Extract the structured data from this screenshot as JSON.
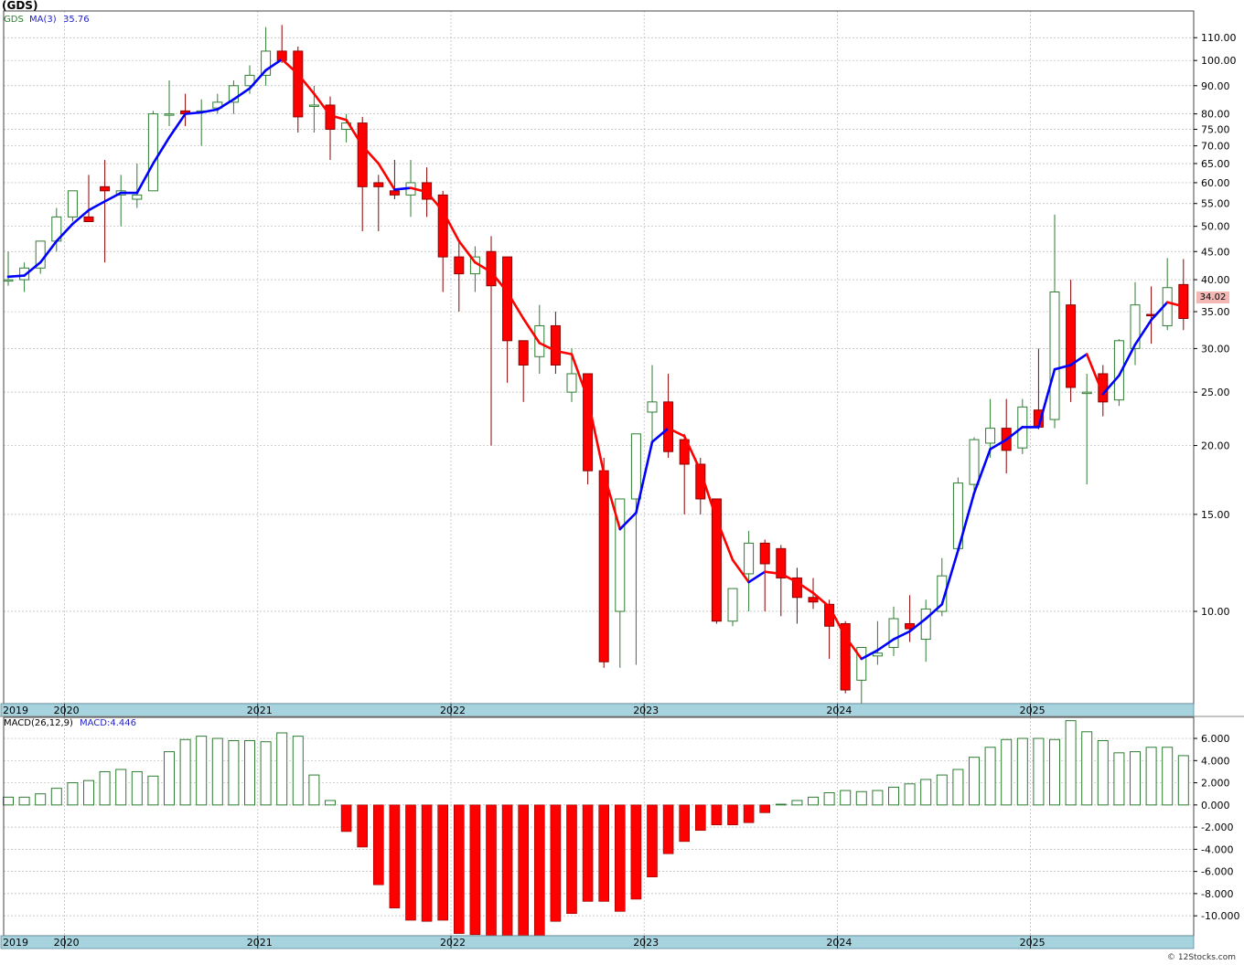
{
  "header": {
    "ticker_title": "(GDS)",
    "legend_symbol": "GDS",
    "legend_ma_label": "MA(3)",
    "legend_ma_value": "35.76",
    "last_price_label": "34.02"
  },
  "macd_header": {
    "label": "MACD(26,12,9)",
    "value_label": "MACD:4.446"
  },
  "footer": {
    "credit": "© 12Stocks.com"
  },
  "colors": {
    "up_candle": "#2e7d32",
    "down_candle": "#ff0000",
    "ma_up": "#0000ff",
    "ma_down": "#ff0000",
    "axis_band": "#a7d3df",
    "grid": "#b8b8b8",
    "last_price_box": "#f4b8b4"
  },
  "chart_data": [
    {
      "type": "candlestick",
      "title": "(GDS)",
      "scale": "log",
      "ylim": [
        6.8,
        123
      ],
      "price_ticks": [
        10,
        15,
        20,
        25,
        30,
        35,
        40,
        45,
        50,
        55,
        60,
        65,
        70,
        75,
        80,
        90,
        100,
        110
      ],
      "price_tick_labels": [
        "10.00",
        "15.00",
        "20.00",
        "25.00",
        "30.00",
        "35.00",
        "40.00",
        "45.00",
        "50.00",
        "55.00",
        "60.00",
        "65.00",
        "70.00",
        "75.00",
        "80.00",
        "90.00",
        "100.00",
        "110.00"
      ],
      "year_labels": [
        "2019",
        "2020",
        "2021",
        "2022",
        "2023",
        "2024",
        "2025"
      ],
      "year_label_months": [
        0,
        4,
        16,
        28,
        40,
        52,
        64
      ],
      "start_month": "Nov 2019",
      "ohlc": [
        [
          40,
          45,
          39,
          40
        ],
        [
          40,
          43,
          38,
          42
        ],
        [
          42,
          47,
          41,
          47
        ],
        [
          47,
          54,
          45,
          52
        ],
        [
          52,
          58,
          51,
          58
        ],
        [
          52,
          62,
          52,
          51
        ],
        [
          59,
          66,
          43,
          58
        ],
        [
          57,
          62,
          50,
          58
        ],
        [
          56,
          65,
          54,
          57
        ],
        [
          58,
          81,
          58,
          80
        ],
        [
          80,
          92,
          76,
          80
        ],
        [
          81,
          87,
          76,
          80
        ],
        [
          81,
          85,
          70,
          81
        ],
        [
          82,
          87,
          80,
          84
        ],
        [
          84,
          92,
          80,
          90
        ],
        [
          90,
          98,
          87,
          94
        ],
        [
          94,
          115,
          90,
          104
        ],
        [
          104,
          116,
          99,
          100
        ],
        [
          104,
          106,
          74,
          79
        ],
        [
          83,
          90,
          74,
          83
        ],
        [
          83,
          86,
          66,
          75
        ],
        [
          75,
          80,
          71,
          77
        ],
        [
          77,
          79,
          49,
          59
        ],
        [
          60,
          62,
          49,
          59
        ],
        [
          58,
          66,
          56,
          57
        ],
        [
          57,
          66,
          52,
          60
        ],
        [
          60,
          64,
          52,
          56
        ],
        [
          57,
          58,
          38,
          44
        ],
        [
          44,
          47,
          35,
          41
        ],
        [
          41,
          46,
          38,
          44
        ],
        [
          45,
          48,
          20,
          39
        ],
        [
          44,
          44,
          26,
          31
        ],
        [
          31,
          31,
          24,
          28
        ],
        [
          29,
          36,
          27,
          33
        ],
        [
          33,
          35,
          27,
          28
        ],
        [
          25,
          30,
          24,
          27
        ],
        [
          27,
          27,
          17,
          18
        ],
        [
          18,
          19,
          7.9,
          8.1
        ],
        [
          10,
          16,
          7.9,
          16
        ],
        [
          16,
          21,
          8,
          21
        ],
        [
          23,
          28,
          20,
          24
        ],
        [
          24,
          27,
          19,
          19.5
        ],
        [
          20.5,
          21,
          15,
          18.5
        ],
        [
          18.5,
          19,
          15,
          16
        ],
        [
          16,
          16,
          9.5,
          9.6
        ],
        [
          9.6,
          11,
          9.4,
          11
        ],
        [
          11.7,
          14,
          10,
          13.3
        ],
        [
          13.3,
          13.5,
          10,
          12.2
        ],
        [
          13,
          13.2,
          9.8,
          11.5
        ],
        [
          11.5,
          12,
          9.5,
          10.6
        ],
        [
          10.6,
          11.5,
          10.1,
          10.4
        ],
        [
          10.3,
          10.5,
          8.2,
          9.4
        ],
        [
          9.5,
          9.6,
          7.1,
          7.2
        ],
        [
          7.5,
          8.6,
          6.7,
          8.6
        ],
        [
          8.3,
          9.6,
          8,
          8.4
        ],
        [
          8.6,
          10.2,
          8.3,
          9.7
        ],
        [
          9.5,
          10.7,
          8.8,
          9.3
        ],
        [
          8.9,
          10.5,
          8.1,
          10.1
        ],
        [
          10,
          12.5,
          9.8,
          11.6
        ],
        [
          13,
          17.5,
          13,
          17.1
        ],
        [
          17,
          20.7,
          16.4,
          20.5
        ],
        [
          20.2,
          24.3,
          19,
          21.5
        ],
        [
          21.5,
          24.3,
          17.8,
          19.6
        ],
        [
          19.8,
          24.3,
          19.3,
          23.5
        ],
        [
          23.2,
          30,
          21.4,
          21.6
        ],
        [
          22.3,
          52.5,
          21.5,
          38
        ],
        [
          36,
          40,
          24,
          25.5
        ],
        [
          25,
          27,
          17,
          25
        ],
        [
          27,
          28,
          22.6,
          24
        ],
        [
          24.2,
          31.2,
          23.6,
          31
        ],
        [
          30,
          39.6,
          28,
          36
        ],
        [
          34.6,
          38.9,
          30.6,
          34.4
        ],
        [
          33,
          43.8,
          32.4,
          38.7
        ],
        [
          39.2,
          43.6,
          32.4,
          34.02
        ]
      ],
      "ma": [
        40.5,
        40.7,
        43,
        47,
        50.5,
        53.5,
        55.5,
        57.5,
        57.5,
        65,
        72.5,
        80,
        80.5,
        81.5,
        85,
        89,
        96,
        100.5,
        94.5,
        87,
        79.5,
        78,
        70,
        65,
        58.3,
        58.7,
        57.7,
        53.3,
        47,
        43,
        41.3,
        38,
        34,
        30.7,
        29.7,
        29.3,
        24.3,
        17.8,
        14.1,
        15.1,
        20.3,
        21.5,
        20.8,
        18,
        14.7,
        12.4,
        11.3,
        11.8,
        11.7,
        11.3,
        10.8,
        10.2,
        9,
        8.2,
        8.5,
        8.9,
        9.2,
        9.7,
        10.3,
        12.9,
        16.4,
        19.7,
        20.5,
        21.6,
        21.6,
        27.5,
        28,
        29.3,
        24.8,
        26.8,
        30.5,
        33.8,
        36.4,
        35.76
      ]
    },
    {
      "type": "bar",
      "title": "MACD(26,12,9)",
      "ylim": [
        -11.8,
        7.9
      ],
      "y_ticks": [
        6,
        4,
        2,
        0,
        -2,
        -4,
        -6,
        -8,
        -10
      ],
      "y_tick_labels": [
        "6.000",
        "4.000",
        "2.000",
        "0.000",
        "-2.000",
        "-4.000",
        "-6.000",
        "-8.000",
        "-10.000"
      ],
      "values": [
        0.7,
        0.7,
        1.0,
        1.5,
        2.0,
        2.2,
        3.0,
        3.2,
        3.0,
        2.6,
        4.8,
        5.9,
        6.2,
        6.0,
        5.8,
        5.8,
        5.7,
        6.5,
        6.2,
        2.7,
        0.4,
        -2.4,
        -3.8,
        -7.2,
        -9.3,
        -10.4,
        -10.5,
        -10.4,
        -11.6,
        -11.7,
        -11.8,
        -11.8,
        -11.8,
        -11.8,
        -10.5,
        -9.8,
        -8.7,
        -8.7,
        -9.6,
        -8.5,
        -6.5,
        -4.4,
        -3.3,
        -2.3,
        -1.8,
        -1.8,
        -1.6,
        -0.7,
        0,
        0.4,
        0.7,
        1.1,
        1.3,
        1.2,
        1.3,
        1.6,
        1.9,
        2.3,
        2.7,
        3.2,
        4.3,
        5.2,
        5.9,
        6.0,
        6.0,
        5.9,
        7.6,
        6.6,
        5.8,
        4.7,
        4.8,
        5.2,
        5.2,
        4.446
      ]
    }
  ]
}
